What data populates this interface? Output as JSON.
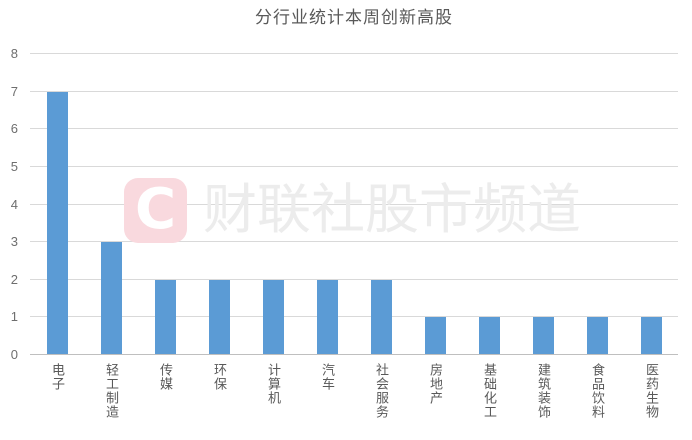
{
  "chart_data": {
    "type": "bar",
    "title": "分行业统计本周创新高股",
    "categories": [
      "电子",
      "轻工制造",
      "传媒",
      "环保",
      "计算机",
      "汽车",
      "社会服务",
      "房地产",
      "基础化工",
      "建筑装饰",
      "食品饮料",
      "医药生物"
    ],
    "values": [
      7,
      3,
      2,
      2,
      2,
      2,
      2,
      1,
      1,
      1,
      1,
      1
    ],
    "xlabel": "",
    "ylabel": "",
    "ylim": [
      0,
      8
    ],
    "yticks": [
      0,
      1,
      2,
      3,
      4,
      5,
      6,
      7,
      8
    ],
    "grid": true,
    "legend": false,
    "bar_color": "#5b9bd5",
    "gridline_color": "#d9d9d9",
    "baseline_color": "#bfbfbf",
    "title_color": "#595959",
    "ytick_color": "#6e6e6e",
    "xtick_color": "#595959"
  },
  "watermark": {
    "logo_letter": "C",
    "logo_bg_color": "#f9d9de",
    "logo_letter_color": "#ffffff",
    "text": "财联社股市频道",
    "text_color": "#ececec"
  }
}
